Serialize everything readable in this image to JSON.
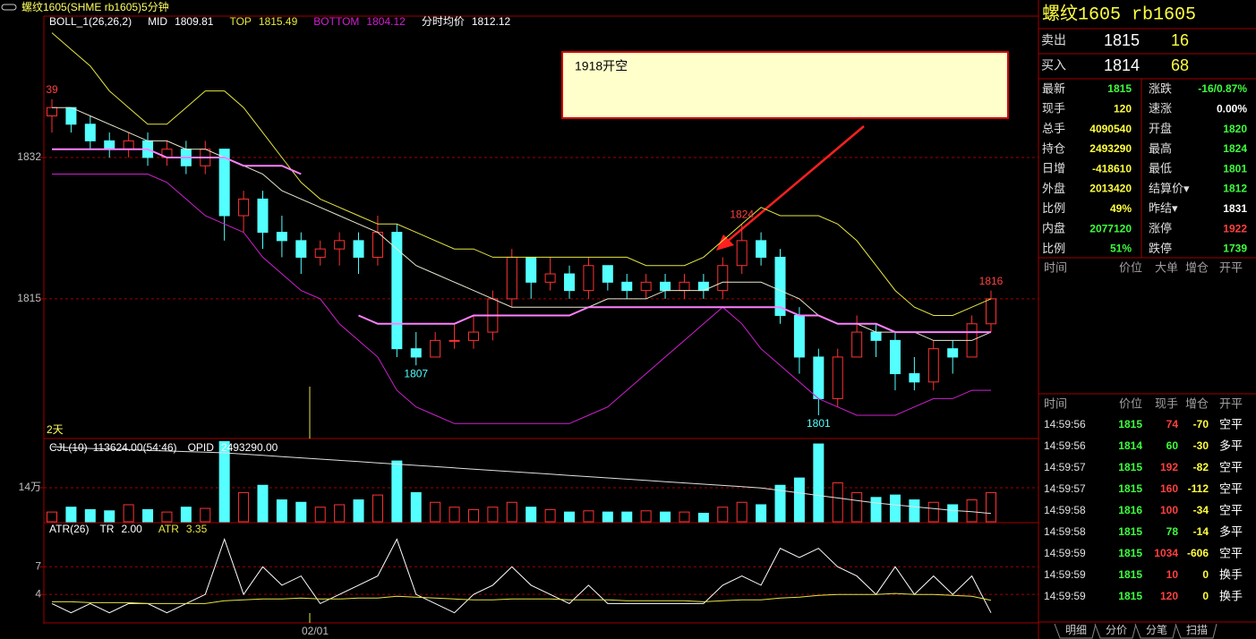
{
  "chart_data": {
    "type": "candlestick",
    "title": "螺纹1605(SHME rb1605)5分钟",
    "indicator": "BOLL_1(26,26,2)",
    "ylim": [
      1798.2,
      1849
    ],
    "yticks": [
      1832,
      1815
    ],
    "grid": true,
    "up_color": "#ff3232",
    "down_color": "#54ffff",
    "ohlc": [
      [
        1837,
        1839,
        1835,
        1838
      ],
      [
        1838,
        1838,
        1835,
        1836
      ],
      [
        1836,
        1837,
        1833,
        1834
      ],
      [
        1834,
        1835,
        1832,
        1833
      ],
      [
        1833,
        1835,
        1832,
        1834
      ],
      [
        1834,
        1835,
        1831,
        1832
      ],
      [
        1832,
        1834,
        1831,
        1833
      ],
      [
        1833,
        1834,
        1830,
        1831
      ],
      [
        1831,
        1834,
        1830,
        1833
      ],
      [
        1833,
        1833,
        1822,
        1825
      ],
      [
        1825,
        1828,
        1823,
        1827
      ],
      [
        1827,
        1828,
        1821,
        1823
      ],
      [
        1823,
        1825,
        1820,
        1822
      ],
      [
        1822,
        1823,
        1818,
        1820
      ],
      [
        1820,
        1822,
        1819,
        1821
      ],
      [
        1821,
        1823,
        1819,
        1822
      ],
      [
        1822,
        1823,
        1818,
        1820
      ],
      [
        1820,
        1825,
        1819,
        1823
      ],
      [
        1823,
        1824,
        1808,
        1809
      ],
      [
        1809,
        1811,
        1807,
        1808
      ],
      [
        1808,
        1811,
        1808,
        1810
      ],
      [
        1810,
        1812,
        1809,
        1810
      ],
      [
        1810,
        1813,
        1809,
        1811
      ],
      [
        1811,
        1816,
        1810,
        1815
      ],
      [
        1815,
        1821,
        1814,
        1820
      ],
      [
        1820,
        1820,
        1815,
        1817
      ],
      [
        1817,
        1820,
        1816,
        1818
      ],
      [
        1818,
        1819,
        1815,
        1816
      ],
      [
        1816,
        1820,
        1815,
        1819
      ],
      [
        1819,
        1819,
        1816,
        1817
      ],
      [
        1817,
        1818,
        1815,
        1816
      ],
      [
        1816,
        1818,
        1815,
        1817
      ],
      [
        1817,
        1818,
        1815,
        1816
      ],
      [
        1816,
        1818,
        1815,
        1817
      ],
      [
        1817,
        1818,
        1815,
        1816
      ],
      [
        1816,
        1820,
        1815,
        1819
      ],
      [
        1819,
        1824,
        1818,
        1822
      ],
      [
        1822,
        1823,
        1819,
        1820
      ],
      [
        1820,
        1821,
        1812,
        1813
      ],
      [
        1813,
        1814,
        1806,
        1808
      ],
      [
        1808,
        1809,
        1801,
        1803
      ],
      [
        1803,
        1809,
        1802,
        1808
      ],
      [
        1808,
        1813,
        1808,
        1811
      ],
      [
        1811,
        1812,
        1808,
        1810
      ],
      [
        1810,
        1811,
        1804,
        1806
      ],
      [
        1806,
        1808,
        1804,
        1805
      ],
      [
        1805,
        1810,
        1804,
        1809
      ],
      [
        1809,
        1810,
        1806,
        1808
      ],
      [
        1808,
        1813,
        1808,
        1812
      ],
      [
        1812,
        1816,
        1811,
        1815
      ]
    ],
    "series": [
      {
        "name": "MID",
        "readout": 1809.81,
        "color": "#e8e8d0",
        "values": [
          1838,
          1838,
          1837,
          1836,
          1835,
          1834,
          1834,
          1833,
          1833,
          1832,
          1831,
          1830,
          1828,
          1827,
          1826,
          1825,
          1824,
          1823,
          1821,
          1819,
          1818,
          1817,
          1816,
          1815,
          1814,
          1814,
          1814,
          1814,
          1814,
          1815,
          1815,
          1815,
          1816,
          1816,
          1816,
          1817,
          1817,
          1817,
          1816,
          1815,
          1813,
          1812,
          1812,
          1811,
          1811,
          1811,
          1810,
          1810,
          1810,
          1811
        ]
      },
      {
        "name": "TOP",
        "readout": 1815.49,
        "color": "#e6e640",
        "values": [
          1847,
          1845,
          1843,
          1840,
          1838,
          1836,
          1836,
          1838,
          1840,
          1840,
          1838,
          1835,
          1832,
          1829,
          1827,
          1826,
          1825,
          1824,
          1824,
          1823,
          1822,
          1821,
          1821,
          1820,
          1820,
          1820,
          1820,
          1820,
          1820,
          1820,
          1820,
          1819,
          1819,
          1819,
          1820,
          1822,
          1824,
          1826,
          1825,
          1825,
          1825,
          1824,
          1822,
          1819,
          1816,
          1814,
          1813,
          1813,
          1814,
          1815
        ]
      },
      {
        "name": "BOTTOM",
        "readout": 1804.12,
        "color": "#d020d0",
        "values": [
          1830,
          1830,
          1830,
          1830,
          1830,
          1830,
          1829,
          1827,
          1825,
          1824,
          1823,
          1820,
          1818,
          1816,
          1815,
          1812,
          1810,
          1808,
          1804,
          1802,
          1801,
          1800,
          1800,
          1800,
          1800,
          1800,
          1800,
          1800,
          1801,
          1802,
          1804,
          1806,
          1808,
          1810,
          1812,
          1814,
          1812,
          1809,
          1807,
          1805,
          1803,
          1802,
          1801,
          1801,
          1801,
          1802,
          1803,
          1803,
          1804,
          1804
        ]
      },
      {
        "name": "分时均价",
        "readout": 1812.12,
        "color": "#ff80ff",
        "values": [
          1833,
          1833,
          1833,
          1833,
          1833,
          1833,
          1832,
          1832,
          1832,
          1832,
          1831,
          1831,
          1831,
          1830,
          null,
          null,
          1813,
          1812,
          1812,
          1812,
          1812,
          1812,
          1813,
          1813,
          1813,
          1813,
          1813,
          1813,
          1814,
          1814,
          1814,
          1814,
          1814,
          1814,
          1814,
          1814,
          1814,
          1814,
          1814,
          1813,
          1813,
          1812,
          1812,
          1812,
          1811,
          1811,
          1811,
          1811,
          1811,
          1811
        ]
      }
    ],
    "peaks": [
      {
        "value": 1839,
        "label": "39"
      },
      1824,
      1816
    ],
    "troughs": [
      1807,
      1801
    ],
    "span_label": "2天",
    "date_label": "02/01",
    "annotation": "1918开空",
    "volume": {
      "label": "CJL(10)",
      "readout": {
        "value": 113624,
        "label": "113624.00"
      },
      "ratio": "(54:46)",
      "ylim": [
        0,
        335000
      ],
      "yticks": [
        {
          "value": 140000,
          "label": "14万"
        }
      ],
      "values": [
        40000,
        60000,
        50000,
        45000,
        70000,
        50000,
        40000,
        60000,
        55000,
        330000,
        120000,
        150000,
        90000,
        80000,
        60000,
        70000,
        90000,
        110000,
        250000,
        120000,
        80000,
        60000,
        50000,
        60000,
        80000,
        60000,
        50000,
        40000,
        45000,
        40000,
        40000,
        45000,
        40000,
        40000,
        35000,
        60000,
        80000,
        70000,
        150000,
        180000,
        320000,
        160000,
        120000,
        100000,
        110000,
        90000,
        80000,
        70000,
        90000,
        120000
      ]
    },
    "opid": {
      "name": "OPID",
      "readout": {
        "value": 2493290,
        "label": "2493290.00"
      },
      "color": "#e0e0e0",
      "ylim": [
        2480000,
        2610000
      ],
      "values": [
        2600000,
        2598000,
        2597000,
        2596000,
        2595000,
        2594000,
        2593000,
        2592000,
        2591000,
        2590000,
        2588000,
        2586000,
        2584000,
        2582000,
        2580000,
        2578000,
        2576000,
        2574000,
        2572000,
        2570000,
        2568000,
        2566000,
        2564000,
        2562000,
        2560000,
        2558000,
        2556000,
        2554000,
        2552000,
        2550000,
        2548000,
        2546000,
        2544000,
        2542000,
        2540000,
        2538000,
        2536000,
        2534000,
        2530000,
        2526000,
        2522000,
        2518000,
        2514000,
        2510000,
        2507000,
        2504000,
        2501000,
        2498000,
        2496000,
        2493290
      ]
    },
    "atr": {
      "label": "ATR(26)",
      "ylim": [
        1,
        11.6
      ],
      "yticks": [
        7,
        4
      ],
      "series": [
        {
          "name": "TR",
          "readout": {
            "value": 2,
            "label": "2.00"
          },
          "color": "#ffffff",
          "values": [
            3,
            2,
            3,
            2,
            3,
            3,
            2,
            3,
            4,
            10,
            4,
            7,
            5,
            6,
            3,
            4,
            5,
            6,
            10,
            4,
            3,
            2,
            4,
            5,
            7,
            5,
            4,
            3,
            5,
            3,
            3,
            3,
            3,
            3,
            3,
            5,
            6,
            5,
            9,
            8,
            9,
            7,
            6,
            4,
            7,
            4,
            6,
            4,
            6,
            2
          ]
        },
        {
          "name": "ATR",
          "readout": 3.35,
          "color": "#e6e640",
          "values": [
            3.2,
            3.2,
            3.1,
            3.1,
            3.1,
            3.0,
            3.0,
            3.0,
            3.0,
            3.3,
            3.4,
            3.5,
            3.5,
            3.6,
            3.5,
            3.5,
            3.6,
            3.6,
            3.8,
            3.7,
            3.6,
            3.5,
            3.4,
            3.4,
            3.5,
            3.5,
            3.5,
            3.4,
            3.4,
            3.4,
            3.3,
            3.3,
            3.3,
            3.3,
            3.2,
            3.3,
            3.4,
            3.4,
            3.6,
            3.7,
            3.9,
            4.0,
            4.0,
            4.0,
            4.1,
            4.0,
            4.0,
            3.9,
            3.8,
            3.35
          ]
        }
      ]
    }
  },
  "quote": {
    "title": "螺纹1605 rb1605",
    "book": [
      {
        "label": "卖出",
        "price": "1815",
        "volume": "16"
      },
      {
        "label": "买入",
        "price": "1814",
        "volume": "68"
      }
    ],
    "stats": [
      [
        {
          "label": "最新",
          "value": "1815",
          "color": "#3cff3c"
        },
        {
          "label": "涨跌",
          "value": "-16/0.87%",
          "color": "#3cff3c"
        }
      ],
      [
        {
          "label": "现手",
          "value": "120",
          "color": "#ffff40"
        },
        {
          "label": "速涨",
          "value": "0.00%",
          "color": "#ffffff"
        }
      ],
      [
        {
          "label": "总手",
          "value": "4090540",
          "color": "#ffff40"
        },
        {
          "label": "开盘",
          "value": "1820",
          "color": "#3cff3c"
        }
      ],
      [
        {
          "label": "持仓",
          "value": "2493290",
          "color": "#ffff40"
        },
        {
          "label": "最高",
          "value": "1824",
          "color": "#3cff3c"
        }
      ],
      [
        {
          "label": "日增",
          "value": "-418610",
          "color": "#ffff40"
        },
        {
          "label": "最低",
          "value": "1801",
          "color": "#3cff3c"
        }
      ],
      [
        {
          "label": "外盘",
          "value": "2013420",
          "color": "#ffff40"
        },
        {
          "label": "结算价▾",
          "value": "1812",
          "color": "#3cff3c"
        }
      ],
      [
        {
          "label": "比例",
          "value": "49%",
          "color": "#ffff40"
        },
        {
          "label": "昨结▾",
          "value": "1831",
          "color": "#ffffff"
        }
      ],
      [
        {
          "label": "内盘",
          "value": "2077120",
          "color": "#3cff3c"
        },
        {
          "label": "涨停",
          "value": "1922",
          "color": "#ff4040"
        }
      ],
      [
        {
          "label": "比例",
          "value": "51%",
          "color": "#3cff3c"
        },
        {
          "label": "跌停",
          "value": "1739",
          "color": "#3cff3c"
        }
      ]
    ],
    "big_header": [
      "时间",
      "价位",
      "大单",
      "增仓",
      "开平"
    ],
    "tick_header": [
      "时间",
      "价位",
      "现手",
      "增仓",
      "开平"
    ],
    "ticks": [
      {
        "time": "14:59:56",
        "price": "1815",
        "volume": "74",
        "change": "-70",
        "type": "空平",
        "volume_color": "#ff4040"
      },
      {
        "time": "14:59:56",
        "price": "1814",
        "volume": "60",
        "change": "-30",
        "type": "多平",
        "volume_color": "#3cff3c"
      },
      {
        "time": "14:59:57",
        "price": "1815",
        "volume": "192",
        "change": "-82",
        "type": "空平",
        "volume_color": "#ff4040"
      },
      {
        "time": "14:59:57",
        "price": "1815",
        "volume": "160",
        "change": "-112",
        "type": "空平",
        "volume_color": "#ff4040"
      },
      {
        "time": "14:59:58",
        "price": "1816",
        "volume": "100",
        "change": "-34",
        "type": "空平",
        "volume_color": "#ff4040"
      },
      {
        "time": "14:59:58",
        "price": "1815",
        "volume": "78",
        "change": "-14",
        "type": "多平",
        "volume_color": "#3cff3c"
      },
      {
        "time": "14:59:59",
        "price": "1815",
        "volume": "1034",
        "change": "-606",
        "type": "空平",
        "volume_color": "#ff4040"
      },
      {
        "time": "14:59:59",
        "price": "1815",
        "volume": "10",
        "change": "0",
        "type": "换手",
        "volume_color": "#ff4040"
      },
      {
        "time": "14:59:59",
        "price": "1815",
        "volume": "120",
        "change": "0",
        "type": "换手",
        "volume_color": "#ff4040"
      }
    ],
    "tabs": [
      "明细",
      "分价",
      "分笔",
      "扫描"
    ]
  }
}
